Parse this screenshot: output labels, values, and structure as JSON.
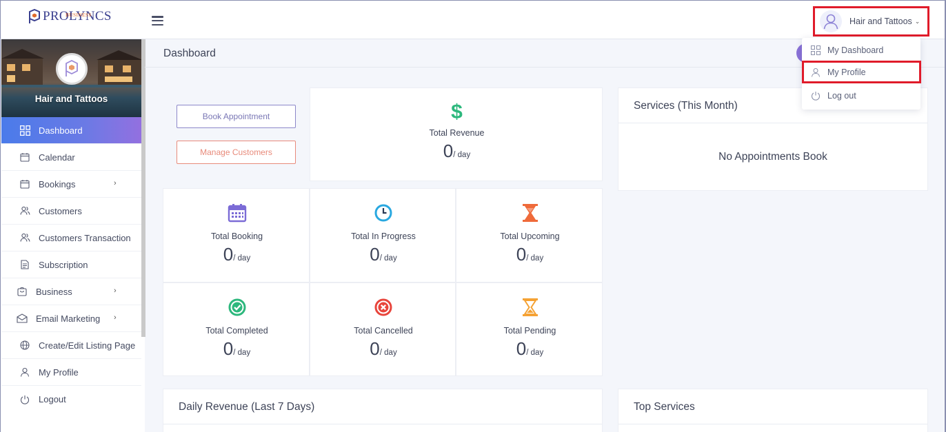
{
  "brand": {
    "name": "PROLYNCS",
    "sub": "BUSINESS"
  },
  "header": {
    "user_name": "Hair and Tattoos"
  },
  "dropdown": {
    "items": [
      {
        "label": "My Dashboard",
        "icon": "grid-icon"
      },
      {
        "label": "My Profile",
        "icon": "user-icon"
      },
      {
        "label": "Log out",
        "icon": "power-icon"
      }
    ]
  },
  "sidebar": {
    "business_name": "Hair and Tattoos",
    "items": [
      {
        "label": "Dashboard",
        "icon": "grid-icon",
        "active": true
      },
      {
        "label": "Calendar",
        "icon": "calendar-icon"
      },
      {
        "label": "Bookings",
        "icon": "calendar-icon",
        "has_submenu": true
      },
      {
        "label": "Customers",
        "icon": "users-icon"
      },
      {
        "label": "Customers Transaction",
        "icon": "users-icon"
      },
      {
        "label": "Subscription",
        "icon": "document-icon"
      },
      {
        "label": "Business",
        "icon": "bag-icon",
        "has_submenu": true
      },
      {
        "label": "Email Marketing",
        "icon": "mail-icon",
        "has_submenu": true
      },
      {
        "label": "Create/Edit Listing Page",
        "icon": "globe-icon"
      },
      {
        "label": "My Profile",
        "icon": "user-icon"
      },
      {
        "label": "Logout",
        "icon": "power-icon"
      }
    ]
  },
  "page": {
    "title": "Dashboard"
  },
  "actions": {
    "book": "Book Appointment",
    "manage": "Manage Customers"
  },
  "stats": {
    "revenue": {
      "label": "Total Revenue",
      "value": "0",
      "unit": "/ day",
      "color": "#2db87d"
    },
    "booking": {
      "label": "Total Booking",
      "value": "0",
      "unit": "/ day",
      "color": "#7b6bd6"
    },
    "in_progress": {
      "label": "Total In Progress",
      "value": "0",
      "unit": "/ day",
      "color": "#29a8e0"
    },
    "upcoming": {
      "label": "Total Upcoming",
      "value": "0",
      "unit": "/ day",
      "color": "#ef6a3a"
    },
    "completed": {
      "label": "Total Completed",
      "value": "0",
      "unit": "/ day",
      "color": "#2db87d"
    },
    "cancelled": {
      "label": "Total Cancelled",
      "value": "0",
      "unit": "/ day",
      "color": "#e8453c"
    },
    "pending": {
      "label": "Total Pending",
      "value": "0",
      "unit": "/ day",
      "color": "#f5a234"
    }
  },
  "services": {
    "title": "Services (This Month)",
    "empty": "No Appointments Book"
  },
  "daily_revenue": {
    "title": "Daily Revenue (Last 7 Days)"
  },
  "top_services": {
    "title": "Top Services"
  }
}
